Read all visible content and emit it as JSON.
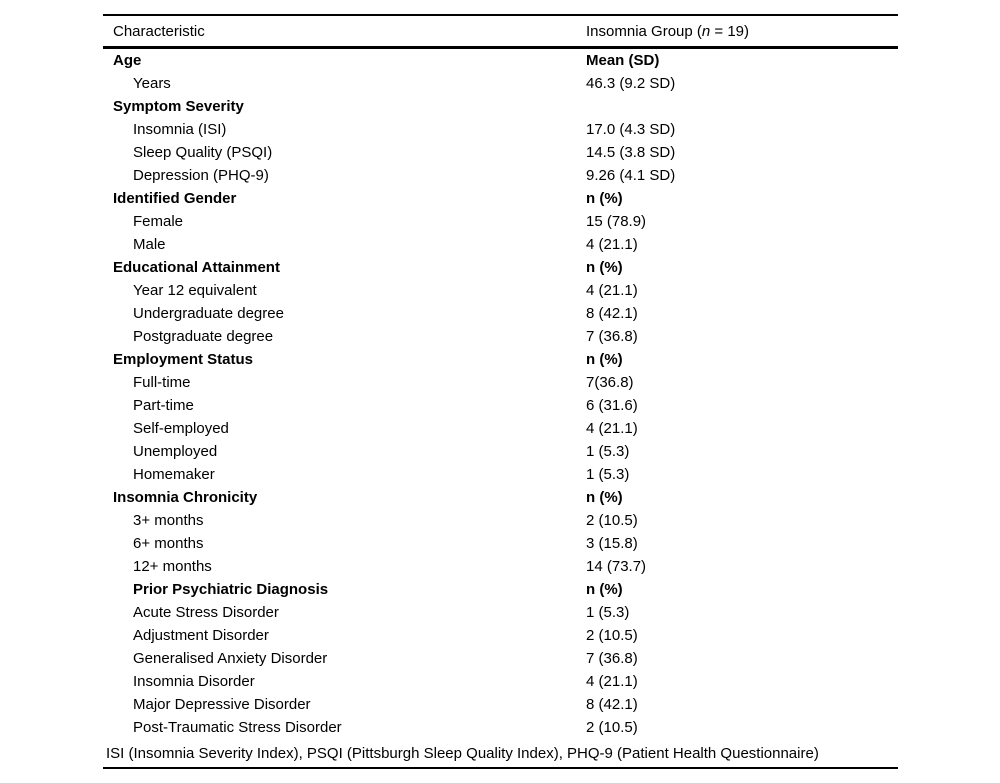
{
  "colors": {
    "text": "#000000",
    "background": "#ffffff",
    "rule": "#000000"
  },
  "table": {
    "header": {
      "characteristic": "Characteristic",
      "group_prefix": "Insomnia Group (",
      "group_n": "n",
      "group_suffix": " = 19)"
    },
    "rows": [
      {
        "label": "Age",
        "value": "Mean (SD)",
        "bold": true,
        "indent": 0
      },
      {
        "label": "Years",
        "value": "46.3 (9.2 SD)",
        "bold": false,
        "indent": 1
      },
      {
        "label": "Symptom Severity",
        "value": "",
        "bold": true,
        "indent": 0
      },
      {
        "label": "Insomnia (ISI)",
        "value": "17.0 (4.3 SD)",
        "bold": false,
        "indent": 1
      },
      {
        "label": "Sleep Quality (PSQI)",
        "value": "14.5 (3.8 SD)",
        "bold": false,
        "indent": 1
      },
      {
        "label": "Depression (PHQ-9)",
        "value": "9.26 (4.1 SD)",
        "bold": false,
        "indent": 1
      },
      {
        "label": "Identified Gender",
        "value": "n (%)",
        "bold": true,
        "indent": 0
      },
      {
        "label": "Female",
        "value": "15 (78.9)",
        "bold": false,
        "indent": 1
      },
      {
        "label": "Male",
        "value": "4 (21.1)",
        "bold": false,
        "indent": 1
      },
      {
        "label": "Educational Attainment",
        "value": "n (%)",
        "bold": true,
        "indent": 0
      },
      {
        "label": "Year 12 equivalent",
        "value": "4 (21.1)",
        "bold": false,
        "indent": 1
      },
      {
        "label": "Undergraduate degree",
        "value": "8 (42.1)",
        "bold": false,
        "indent": 1
      },
      {
        "label": "Postgraduate degree",
        "value": "7 (36.8)",
        "bold": false,
        "indent": 1
      },
      {
        "label": "Employment Status",
        "value": "n (%)",
        "bold": true,
        "indent": 0
      },
      {
        "label": "Full-time",
        "value": "7(36.8)",
        "bold": false,
        "indent": 1
      },
      {
        "label": "Part-time",
        "value": "6 (31.6)",
        "bold": false,
        "indent": 1
      },
      {
        "label": "Self-employed",
        "value": "4 (21.1)",
        "bold": false,
        "indent": 1
      },
      {
        "label": "Unemployed",
        "value": "1 (5.3)",
        "bold": false,
        "indent": 1
      },
      {
        "label": "Homemaker",
        "value": "1 (5.3)",
        "bold": false,
        "indent": 1
      },
      {
        "label": "Insomnia Chronicity",
        "value": "n (%)",
        "bold": true,
        "indent": 0
      },
      {
        "label": "3+ months",
        "value": "2 (10.5)",
        "bold": false,
        "indent": 1
      },
      {
        "label": "6+ months",
        "value": "3 (15.8)",
        "bold": false,
        "indent": 1
      },
      {
        "label": "12+ months",
        "value": "14 (73.7)",
        "bold": false,
        "indent": 1
      },
      {
        "label": "Prior Psychiatric Diagnosis",
        "value": "n (%)",
        "bold": true,
        "indent": 1
      },
      {
        "label": "Acute Stress Disorder",
        "value": "1 (5.3)",
        "bold": false,
        "indent": 1
      },
      {
        "label": "Adjustment Disorder",
        "value": "2 (10.5)",
        "bold": false,
        "indent": 1
      },
      {
        "label": "Generalised Anxiety Disorder",
        "value": "7 (36.8)",
        "bold": false,
        "indent": 1
      },
      {
        "label": "Insomnia Disorder",
        "value": "4 (21.1)",
        "bold": false,
        "indent": 1
      },
      {
        "label": "Major Depressive Disorder",
        "value": "8 (42.1)",
        "bold": false,
        "indent": 1
      },
      {
        "label": "Post-Traumatic Stress Disorder",
        "value": "2 (10.5)",
        "bold": false,
        "indent": 1
      }
    ],
    "footnote": "ISI (Insomnia Severity Index), PSQI (Pittsburgh Sleep Quality Index), PHQ-9 (Patient Health Questionnaire)"
  }
}
